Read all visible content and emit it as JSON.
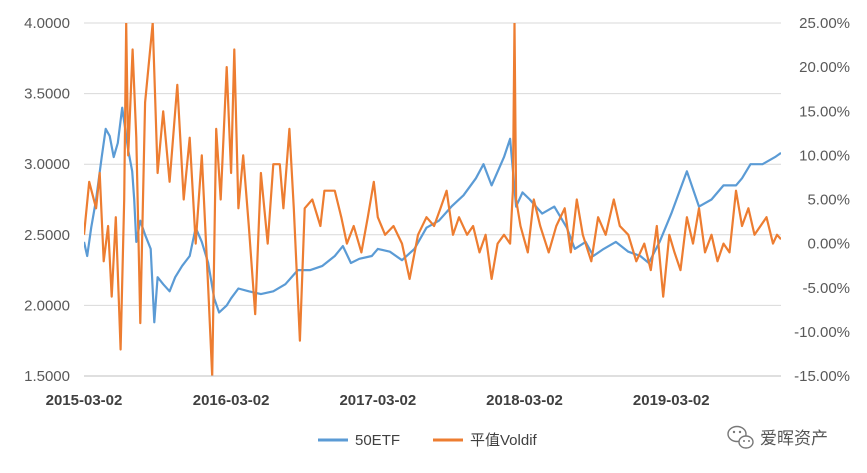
{
  "chart_data": {
    "type": "line",
    "title": "",
    "xlabel": "",
    "ylabel": "",
    "x_ticks": [
      "2015-03-02",
      "2016-03-02",
      "2017-03-02",
      "2018-03-02",
      "2019-03-02"
    ],
    "x_range": [
      "2015-03-02",
      "2019-11-30"
    ],
    "y_left": {
      "min": 1.5,
      "max": 4.0,
      "ticks": [
        "1.5000",
        "2.0000",
        "2.5000",
        "3.0000",
        "3.5000",
        "4.0000"
      ]
    },
    "y_right": {
      "min": -15,
      "max": 25,
      "unit": "%",
      "ticks": [
        "-15.00%",
        "-10.00%",
        "-5.00%",
        "0.00%",
        "5.00%",
        "10.00%",
        "15.00%",
        "20.00%",
        "25.00%"
      ]
    },
    "grid": "horizontal",
    "legend_position": "bottom",
    "series": [
      {
        "name": "50ETF",
        "axis": "left",
        "color": "#5b9bd5",
        "points": [
          [
            "2015-03-02",
            2.45
          ],
          [
            "2015-03-10",
            2.35
          ],
          [
            "2015-03-20",
            2.55
          ],
          [
            "2015-04-01",
            2.75
          ],
          [
            "2015-04-15",
            3.05
          ],
          [
            "2015-04-25",
            3.25
          ],
          [
            "2015-05-05",
            3.2
          ],
          [
            "2015-05-15",
            3.05
          ],
          [
            "2015-05-25",
            3.15
          ],
          [
            "2015-06-05",
            3.4
          ],
          [
            "2015-06-10",
            3.3
          ],
          [
            "2015-06-20",
            3.1
          ],
          [
            "2015-06-30",
            2.95
          ],
          [
            "2015-07-05",
            2.75
          ],
          [
            "2015-07-10",
            2.45
          ],
          [
            "2015-07-20",
            2.6
          ],
          [
            "2015-08-01",
            2.5
          ],
          [
            "2015-08-15",
            2.4
          ],
          [
            "2015-08-24",
            1.88
          ],
          [
            "2015-09-01",
            2.2
          ],
          [
            "2015-09-15",
            2.15
          ],
          [
            "2015-10-01",
            2.1
          ],
          [
            "2015-10-15",
            2.2
          ],
          [
            "2015-11-01",
            2.28
          ],
          [
            "2015-11-20",
            2.35
          ],
          [
            "2015-12-05",
            2.55
          ],
          [
            "2015-12-20",
            2.45
          ],
          [
            "2016-01-05",
            2.3
          ],
          [
            "2016-01-20",
            2.05
          ],
          [
            "2016-02-01",
            1.95
          ],
          [
            "2016-02-20",
            2.0
          ],
          [
            "2016-03-02",
            2.05
          ],
          [
            "2016-03-20",
            2.12
          ],
          [
            "2016-04-15",
            2.1
          ],
          [
            "2016-05-15",
            2.08
          ],
          [
            "2016-06-15",
            2.1
          ],
          [
            "2016-07-15",
            2.15
          ],
          [
            "2016-08-15",
            2.25
          ],
          [
            "2016-09-15",
            2.25
          ],
          [
            "2016-10-15",
            2.28
          ],
          [
            "2016-11-15",
            2.35
          ],
          [
            "2016-12-05",
            2.42
          ],
          [
            "2016-12-25",
            2.3
          ],
          [
            "2017-01-15",
            2.33
          ],
          [
            "2017-02-15",
            2.35
          ],
          [
            "2017-03-02",
            2.4
          ],
          [
            "2017-04-01",
            2.38
          ],
          [
            "2017-05-01",
            2.32
          ],
          [
            "2017-06-01",
            2.4
          ],
          [
            "2017-07-01",
            2.55
          ],
          [
            "2017-08-01",
            2.6
          ],
          [
            "2017-09-01",
            2.7
          ],
          [
            "2017-10-01",
            2.78
          ],
          [
            "2017-11-01",
            2.9
          ],
          [
            "2017-11-20",
            3.0
          ],
          [
            "2017-12-10",
            2.85
          ],
          [
            "2018-01-10",
            3.05
          ],
          [
            "2018-01-25",
            3.18
          ],
          [
            "2018-02-09",
            2.7
          ],
          [
            "2018-02-25",
            2.8
          ],
          [
            "2018-03-15",
            2.75
          ],
          [
            "2018-04-15",
            2.65
          ],
          [
            "2018-05-15",
            2.7
          ],
          [
            "2018-06-15",
            2.55
          ],
          [
            "2018-07-05",
            2.4
          ],
          [
            "2018-08-01",
            2.45
          ],
          [
            "2018-08-20",
            2.35
          ],
          [
            "2018-09-15",
            2.4
          ],
          [
            "2018-10-15",
            2.45
          ],
          [
            "2018-11-15",
            2.38
          ],
          [
            "2018-12-15",
            2.35
          ],
          [
            "2019-01-05",
            2.3
          ],
          [
            "2019-02-01",
            2.45
          ],
          [
            "2019-03-02",
            2.65
          ],
          [
            "2019-03-15",
            2.75
          ],
          [
            "2019-04-10",
            2.95
          ],
          [
            "2019-05-10",
            2.7
          ],
          [
            "2019-06-10",
            2.75
          ],
          [
            "2019-07-10",
            2.85
          ],
          [
            "2019-08-10",
            2.85
          ],
          [
            "2019-08-25",
            2.9
          ],
          [
            "2019-09-15",
            3.0
          ],
          [
            "2019-10-15",
            3.0
          ],
          [
            "2019-11-15",
            3.05
          ],
          [
            "2019-11-30",
            3.08
          ]
        ]
      },
      {
        "name": "平值Voldif",
        "axis": "right",
        "color": "#ed7d31",
        "points": [
          [
            "2015-03-02",
            1.0
          ],
          [
            "2015-03-15",
            7.0
          ],
          [
            "2015-04-01",
            4.0
          ],
          [
            "2015-04-10",
            8.0
          ],
          [
            "2015-04-20",
            -2.0
          ],
          [
            "2015-05-01",
            2.0
          ],
          [
            "2015-05-10",
            -6.0
          ],
          [
            "2015-05-20",
            3.0
          ],
          [
            "2015-06-01",
            -12.0
          ],
          [
            "2015-06-10",
            5.0
          ],
          [
            "2015-06-15",
            25.0
          ],
          [
            "2015-06-20",
            10.0
          ],
          [
            "2015-07-01",
            22.0
          ],
          [
            "2015-07-10",
            12.0
          ],
          [
            "2015-07-20",
            -9.0
          ],
          [
            "2015-08-01",
            16.0
          ],
          [
            "2015-08-20",
            25.0
          ],
          [
            "2015-09-01",
            8.0
          ],
          [
            "2015-09-15",
            15.0
          ],
          [
            "2015-10-01",
            7.0
          ],
          [
            "2015-10-20",
            18.0
          ],
          [
            "2015-11-05",
            5.0
          ],
          [
            "2015-11-20",
            12.0
          ],
          [
            "2015-12-05",
            0.0
          ],
          [
            "2015-12-20",
            10.0
          ],
          [
            "2016-01-05",
            -5.0
          ],
          [
            "2016-01-15",
            -15.0
          ],
          [
            "2016-01-25",
            13.0
          ],
          [
            "2016-02-05",
            5.0
          ],
          [
            "2016-02-20",
            20.0
          ],
          [
            "2016-03-02",
            8.0
          ],
          [
            "2016-03-10",
            22.0
          ],
          [
            "2016-03-20",
            4.0
          ],
          [
            "2016-04-01",
            10.0
          ],
          [
            "2016-04-15",
            2.0
          ],
          [
            "2016-05-01",
            -8.0
          ],
          [
            "2016-05-15",
            8.0
          ],
          [
            "2016-06-01",
            0.0
          ],
          [
            "2016-06-15",
            9.0
          ],
          [
            "2016-07-01",
            9.0
          ],
          [
            "2016-07-10",
            4.0
          ],
          [
            "2016-07-25",
            13.0
          ],
          [
            "2016-08-05",
            4.0
          ],
          [
            "2016-08-20",
            -11.0
          ],
          [
            "2016-09-01",
            4.0
          ],
          [
            "2016-09-20",
            5.0
          ],
          [
            "2016-10-10",
            2.0
          ],
          [
            "2016-10-20",
            6.0
          ],
          [
            "2016-11-01",
            6.0
          ],
          [
            "2016-11-15",
            6.0
          ],
          [
            "2016-12-01",
            3.0
          ],
          [
            "2016-12-15",
            0.0
          ],
          [
            "2017-01-01",
            2.0
          ],
          [
            "2017-01-20",
            -1.0
          ],
          [
            "2017-02-05",
            3.0
          ],
          [
            "2017-02-20",
            7.0
          ],
          [
            "2017-03-02",
            3.0
          ],
          [
            "2017-03-20",
            1.0
          ],
          [
            "2017-04-10",
            2.0
          ],
          [
            "2017-05-01",
            0.0
          ],
          [
            "2017-05-20",
            -4.0
          ],
          [
            "2017-06-10",
            1.0
          ],
          [
            "2017-07-01",
            3.0
          ],
          [
            "2017-07-20",
            2.0
          ],
          [
            "2017-08-05",
            4.0
          ],
          [
            "2017-08-20",
            6.0
          ],
          [
            "2017-09-05",
            1.0
          ],
          [
            "2017-09-20",
            3.0
          ],
          [
            "2017-10-10",
            1.0
          ],
          [
            "2017-10-25",
            2.0
          ],
          [
            "2017-11-10",
            -1.0
          ],
          [
            "2017-11-25",
            1.0
          ],
          [
            "2017-12-10",
            -4.0
          ],
          [
            "2017-12-25",
            0.0
          ],
          [
            "2018-01-10",
            1.0
          ],
          [
            "2018-01-25",
            0.0
          ],
          [
            "2018-02-01",
            6.0
          ],
          [
            "2018-02-05",
            25.0
          ],
          [
            "2018-02-09",
            5.0
          ],
          [
            "2018-02-20",
            2.0
          ],
          [
            "2018-03-10",
            -1.0
          ],
          [
            "2018-03-25",
            5.0
          ],
          [
            "2018-04-10",
            2.0
          ],
          [
            "2018-05-01",
            -1.0
          ],
          [
            "2018-05-20",
            2.0
          ],
          [
            "2018-06-10",
            4.0
          ],
          [
            "2018-06-25",
            -1.0
          ],
          [
            "2018-07-10",
            5.0
          ],
          [
            "2018-07-25",
            1.0
          ],
          [
            "2018-08-15",
            -2.0
          ],
          [
            "2018-09-01",
            3.0
          ],
          [
            "2018-09-20",
            1.0
          ],
          [
            "2018-10-10",
            5.0
          ],
          [
            "2018-10-25",
            2.0
          ],
          [
            "2018-11-15",
            1.0
          ],
          [
            "2018-12-05",
            -2.0
          ],
          [
            "2018-12-25",
            0.0
          ],
          [
            "2019-01-10",
            -3.0
          ],
          [
            "2019-01-25",
            2.0
          ],
          [
            "2019-02-10",
            -6.0
          ],
          [
            "2019-02-25",
            1.0
          ],
          [
            "2019-03-10",
            -1.0
          ],
          [
            "2019-03-25",
            -3.0
          ],
          [
            "2019-04-10",
            3.0
          ],
          [
            "2019-04-25",
            0.0
          ],
          [
            "2019-05-10",
            4.0
          ],
          [
            "2019-05-25",
            -1.0
          ],
          [
            "2019-06-10",
            1.0
          ],
          [
            "2019-06-25",
            -2.0
          ],
          [
            "2019-07-10",
            0.0
          ],
          [
            "2019-07-25",
            -1.0
          ],
          [
            "2019-08-10",
            6.0
          ],
          [
            "2019-08-25",
            2.0
          ],
          [
            "2019-09-10",
            4.0
          ],
          [
            "2019-09-25",
            1.0
          ],
          [
            "2019-10-10",
            2.0
          ],
          [
            "2019-10-25",
            3.0
          ],
          [
            "2019-11-10",
            0.0
          ],
          [
            "2019-11-20",
            1.0
          ],
          [
            "2019-11-30",
            0.5
          ]
        ]
      }
    ]
  },
  "watermark": {
    "text": "爱晖资产",
    "icon": "wechat-icon"
  }
}
